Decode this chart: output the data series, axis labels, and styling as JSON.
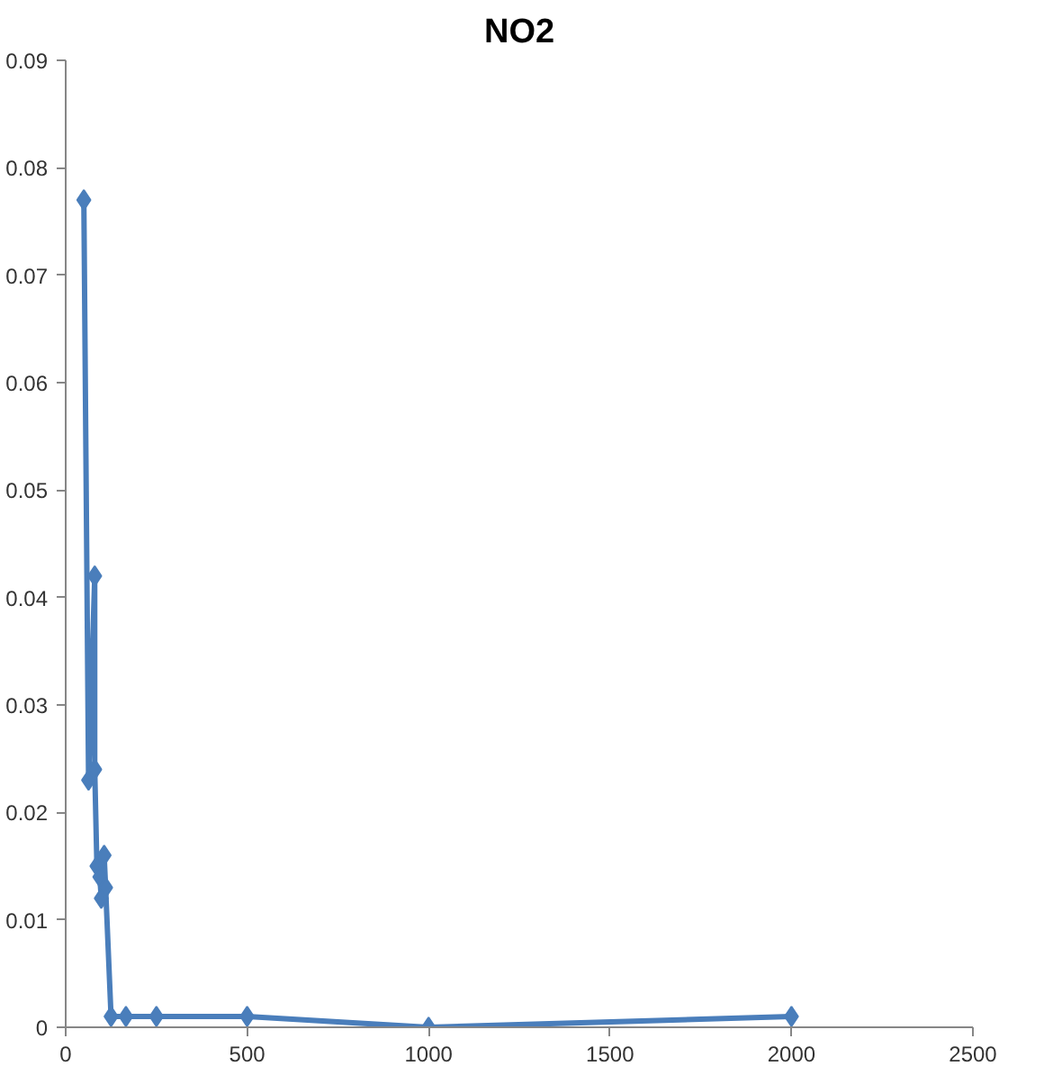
{
  "chart_data": {
    "type": "line",
    "title": "NO2",
    "x": [
      50,
      63,
      80,
      80,
      86,
      94,
      98,
      106,
      110,
      125,
      166,
      250,
      500,
      1000,
      2000
    ],
    "series": [
      {
        "color": "#4a7ebb",
        "values": [
          0.077,
          0.023,
          0.042,
          0.024,
          0.015,
          0.014,
          0.012,
          0.016,
          0.013,
          0.001,
          0.001,
          0.001,
          0.001,
          0,
          0.001
        ]
      }
    ],
    "xlim": [
      0,
      2500
    ],
    "xticks": [
      0,
      500,
      1000,
      1500,
      2000,
      2500
    ],
    "ylim": [
      0,
      0.09
    ],
    "yticks": [
      0,
      0.01,
      0.02,
      0.03,
      0.04,
      0.05,
      0.06,
      0.07,
      0.08,
      0.09
    ],
    "marker": "diamond",
    "line_style": "solid",
    "grid": false
  }
}
